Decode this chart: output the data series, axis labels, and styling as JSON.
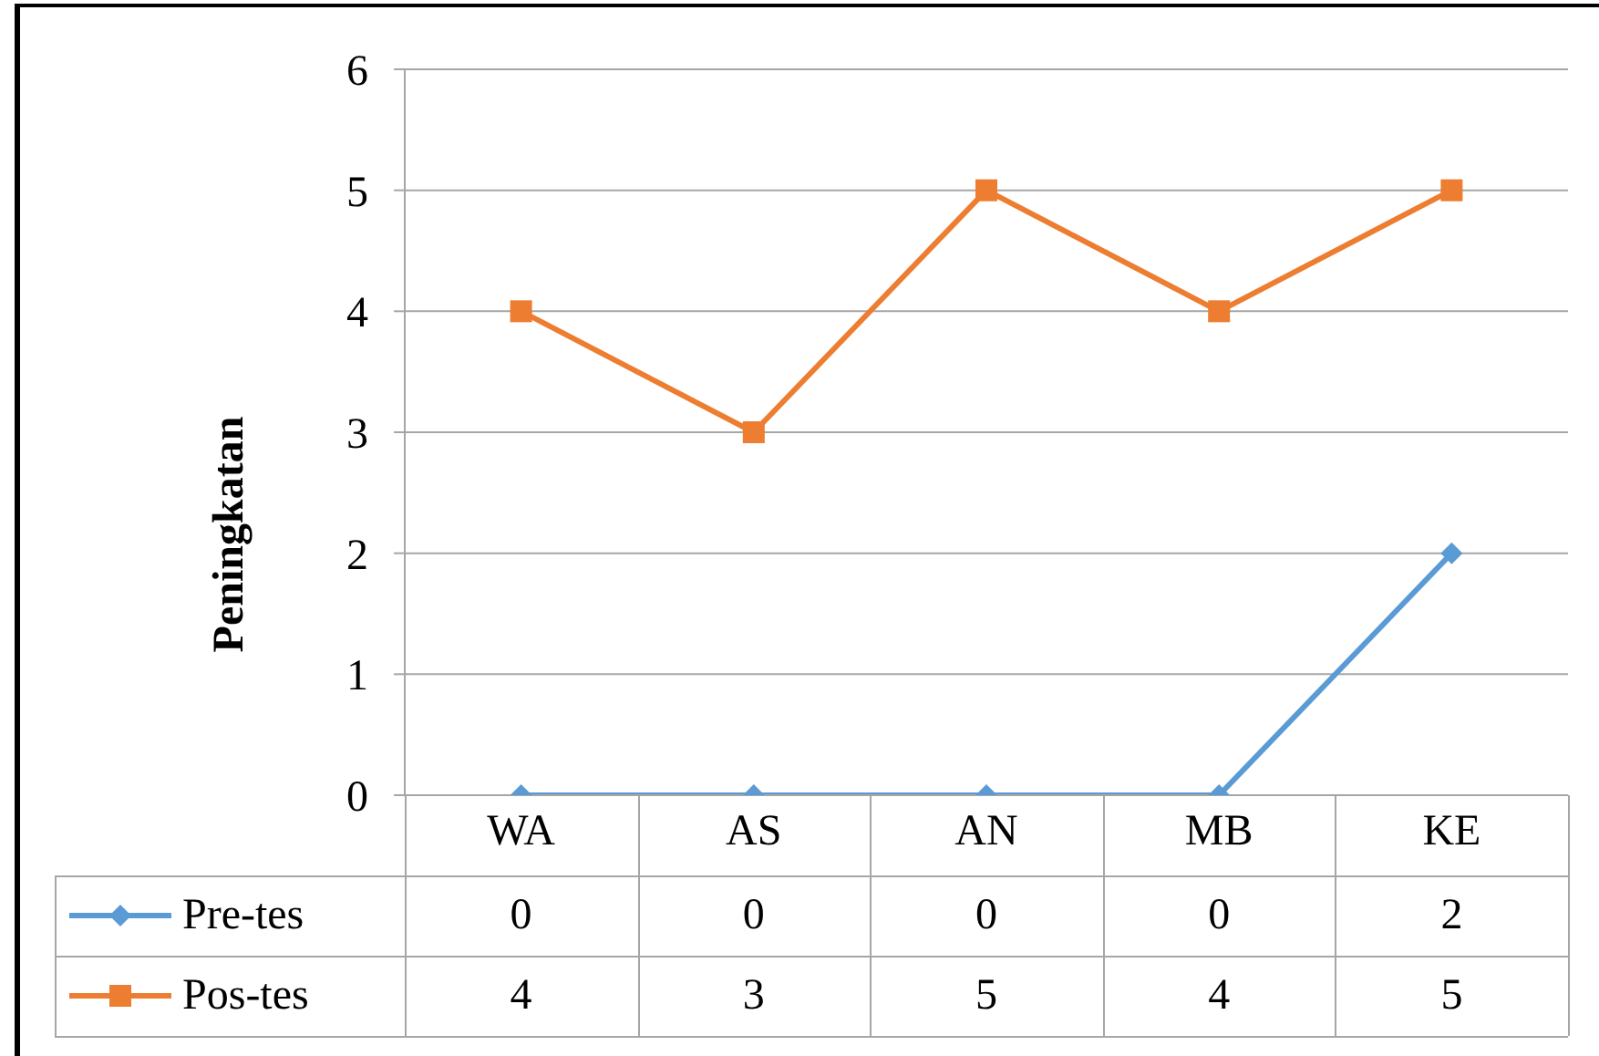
{
  "chart_data": {
    "type": "line",
    "ylabel": "Peningkatan",
    "categories": [
      "WA",
      "AS",
      "AN",
      "MB",
      "KE"
    ],
    "series": [
      {
        "name": "Pre-tes",
        "color": "#5b9bd5",
        "marker": "diamond",
        "values": [
          0,
          0,
          0,
          0,
          2
        ]
      },
      {
        "name": "Pos-tes",
        "color": "#ed7d31",
        "marker": "square",
        "values": [
          4,
          3,
          5,
          4,
          5
        ]
      }
    ],
    "ylim": [
      0,
      6
    ],
    "yticks": [
      0,
      1,
      2,
      3,
      4,
      5,
      6
    ],
    "grid": "y",
    "legend": "bottom",
    "data_labels": true
  }
}
